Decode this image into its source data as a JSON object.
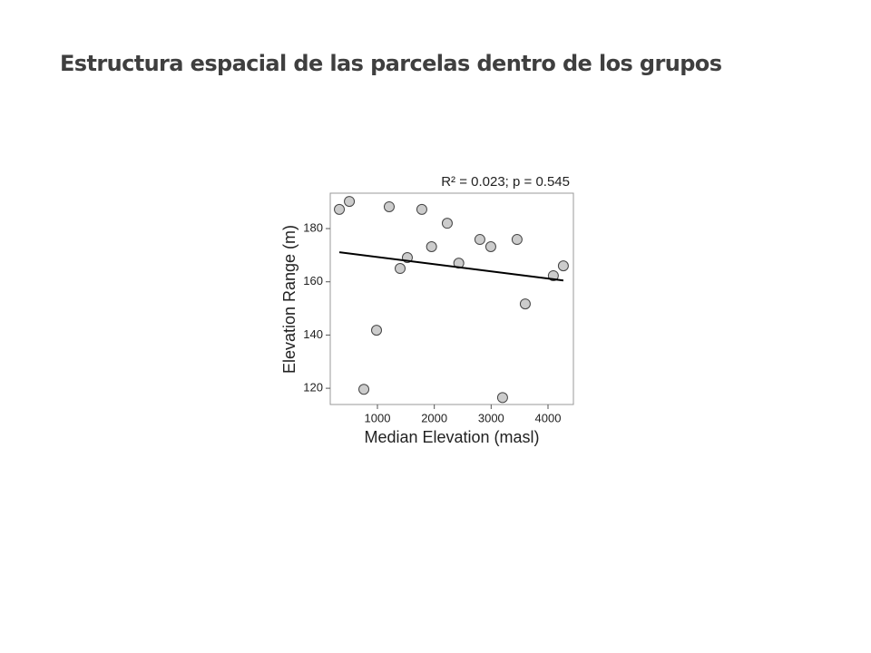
{
  "slide_title": "Estructura espacial de las parcelas dentro de los grupos",
  "chart_data": {
    "type": "scatter",
    "annotation": "R² = 0.023; p = 0.545",
    "x_label": "Median Elevation (masl)",
    "y_label": "Elevation Range (m)",
    "x": [
      330,
      506,
      761,
      984,
      1207,
      1399,
      1526,
      1781,
      1952,
      2228,
      2431,
      2802,
      2994,
      3201,
      3456,
      3600,
      4094,
      4270
    ],
    "values": [
      187.2,
      190.2,
      119.6,
      141.8,
      188.2,
      165.0,
      169.1,
      187.2,
      173.2,
      182.0,
      167.0,
      175.9,
      173.2,
      116.5,
      175.9,
      151.7,
      162.3,
      166.0
    ],
    "color": "#cccccc",
    "trend": {
      "x": [
        330,
        4270
      ],
      "y": [
        171.1,
        160.5
      ],
      "color": "#000000"
    },
    "xlim": [
      170,
      4447
    ],
    "ylim": [
      113.9,
      193.3
    ],
    "xticks": [
      1000,
      2000,
      3000,
      4000
    ],
    "yticks": [
      120,
      140,
      160,
      180
    ],
    "grid": false
  }
}
